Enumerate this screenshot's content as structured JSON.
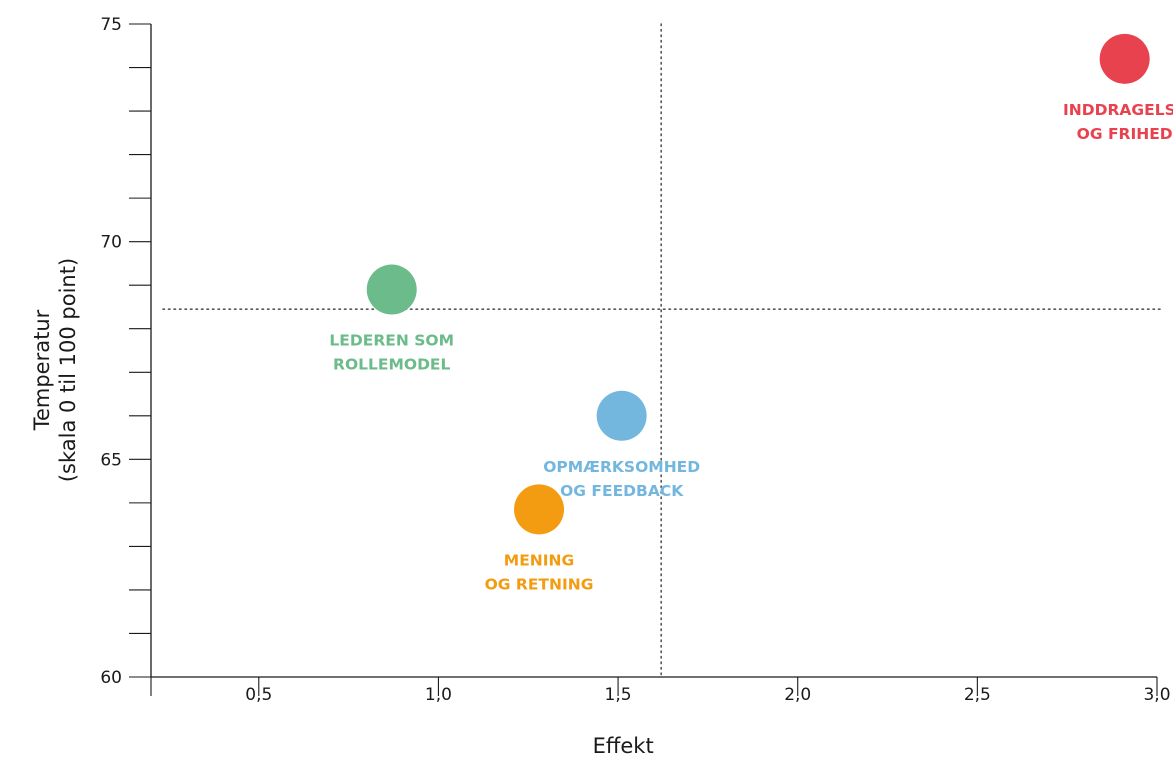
{
  "chart_data": {
    "type": "scatter",
    "title": "",
    "xlabel": "Effekt",
    "ylabel_lines": [
      "Temperatur",
      "(skala 0 til 100 point)"
    ],
    "xlim": [
      0.2,
      3.0
    ],
    "ylim": [
      60,
      75
    ],
    "x_ticks": [
      {
        "value": 0.5,
        "label": "0,5"
      },
      {
        "value": 1.0,
        "label": "1,0"
      },
      {
        "value": 1.5,
        "label": "1,5"
      },
      {
        "value": 2.0,
        "label": "2,0"
      },
      {
        "value": 2.5,
        "label": "2,5"
      },
      {
        "value": 3.0,
        "label": "3,0"
      }
    ],
    "y_major_ticks": [
      {
        "value": 60,
        "label": "60"
      },
      {
        "value": 65,
        "label": "65"
      },
      {
        "value": 70,
        "label": "70"
      },
      {
        "value": 75,
        "label": "75"
      }
    ],
    "y_minor_step": 1,
    "reference_lines": {
      "x": 1.62,
      "y": 68.45
    },
    "grid": false,
    "points": [
      {
        "name": "lederen-som-rollemodel",
        "x": 0.87,
        "y": 68.9,
        "color": "#6cbb8a",
        "label_lines": [
          "LEDEREN SOM",
          "ROLLEMODEL"
        ]
      },
      {
        "name": "opmaerksomhed-og-feedback",
        "x": 1.51,
        "y": 66.0,
        "color": "#73b7de",
        "label_lines": [
          "OPMÆRKSOMHED",
          "OG FEEDBACK"
        ]
      },
      {
        "name": "mening-og-retning",
        "x": 1.28,
        "y": 63.85,
        "color": "#f39c12",
        "label_lines": [
          "MENING",
          "OG RETNING"
        ]
      },
      {
        "name": "inddragelse-og-frihed",
        "x": 2.91,
        "y": 74.2,
        "color": "#e8424f",
        "label_lines": [
          "INDDRAGELSE",
          "OG FRIHED"
        ]
      }
    ]
  }
}
